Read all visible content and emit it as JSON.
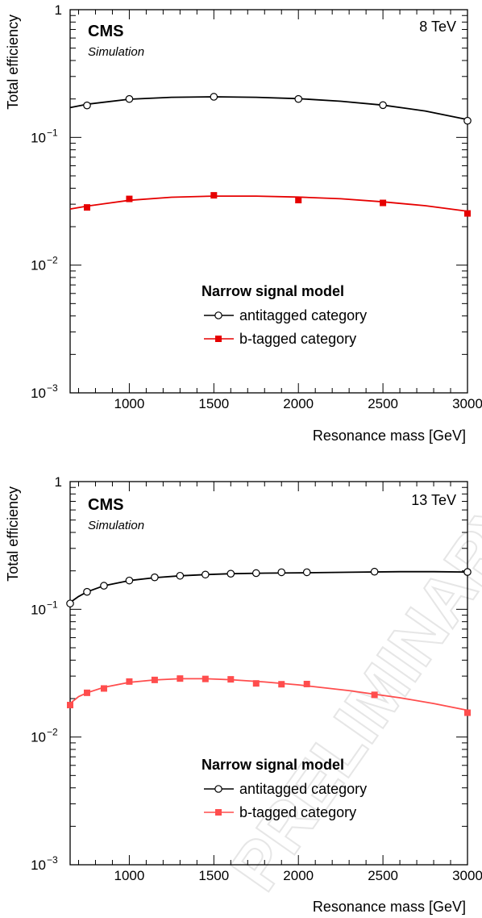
{
  "watermark": "PRELIMINARY",
  "chart_data": [
    {
      "type": "line",
      "energy_label": "8 TeV",
      "experiment": "CMS",
      "subtitle": "Simulation",
      "xlabel": "Resonance mass [GeV]",
      "ylabel": "Total efficiency",
      "xlim": [
        650,
        3000
      ],
      "ylim": [
        0.001,
        1
      ],
      "yscale": "log",
      "x_ticks": [
        "1000",
        "1500",
        "2000",
        "2500",
        "3000"
      ],
      "y_ticks": [
        {
          "base": "10",
          "exp": "−3"
        },
        {
          "base": "10",
          "exp": "−2"
        },
        {
          "base": "10",
          "exp": "−1"
        },
        {
          "base": "1",
          "exp": ""
        }
      ],
      "legend_title": "Narrow signal model",
      "legend_position": "center-right",
      "grid": false,
      "series": [
        {
          "name": "antitagged category",
          "color": "#000000",
          "marker": "open-circle",
          "x": [
            750,
            1000,
            1500,
            2000,
            2500,
            3000
          ],
          "y": [
            0.178,
            0.2,
            0.208,
            0.2,
            0.179,
            0.135
          ],
          "fit_x": [
            650,
            750,
            1000,
            1250,
            1500,
            1750,
            2000,
            2250,
            2500,
            2750,
            3000
          ],
          "fit_y": [
            0.171,
            0.182,
            0.199,
            0.206,
            0.208,
            0.206,
            0.201,
            0.192,
            0.179,
            0.161,
            0.138
          ]
        },
        {
          "name": "b-tagged category",
          "color": "#e60000",
          "marker": "filled-square",
          "x": [
            750,
            1000,
            1500,
            2000,
            2500,
            3000
          ],
          "y": [
            0.0283,
            0.033,
            0.0352,
            0.0323,
            0.0307,
            0.0254
          ],
          "fit_x": [
            650,
            750,
            1000,
            1250,
            1500,
            1750,
            2000,
            2250,
            2500,
            2750,
            3000
          ],
          "fit_y": [
            0.0275,
            0.029,
            0.0322,
            0.034,
            0.0347,
            0.0347,
            0.0341,
            0.0331,
            0.0313,
            0.0292,
            0.0264
          ]
        }
      ]
    },
    {
      "type": "line",
      "energy_label": "13 TeV",
      "experiment": "CMS",
      "subtitle": "Simulation",
      "xlabel": "Resonance mass [GeV]",
      "ylabel": "Total efficiency",
      "xlim": [
        650,
        3000
      ],
      "ylim": [
        0.001,
        1
      ],
      "yscale": "log",
      "x_ticks": [
        "1000",
        "1500",
        "2000",
        "2500",
        "3000"
      ],
      "y_ticks": [
        {
          "base": "10",
          "exp": "−3"
        },
        {
          "base": "10",
          "exp": "−2"
        },
        {
          "base": "10",
          "exp": "−1"
        },
        {
          "base": "1",
          "exp": ""
        }
      ],
      "legend_title": "Narrow signal model",
      "legend_position": "center-right",
      "grid": false,
      "series": [
        {
          "name": "antitagged category",
          "color": "#000000",
          "marker": "open-circle",
          "x": [
            650,
            750,
            850,
            1000,
            1150,
            1300,
            1450,
            1600,
            1750,
            1900,
            2050,
            2450,
            3000
          ],
          "y": [
            0.111,
            0.137,
            0.153,
            0.168,
            0.178,
            0.183,
            0.187,
            0.19,
            0.192,
            0.195,
            0.195,
            0.197,
            0.196
          ],
          "fit_x": [
            650,
            700,
            750,
            850,
            1000,
            1150,
            1300,
            1450,
            1600,
            1800,
            2000,
            2300,
            2600,
            2800,
            3000
          ],
          "fit_y": [
            0.113,
            0.126,
            0.137,
            0.153,
            0.168,
            0.177,
            0.183,
            0.187,
            0.19,
            0.192,
            0.193,
            0.195,
            0.197,
            0.197,
            0.196
          ]
        },
        {
          "name": "b-tagged category",
          "color": "#ff4d4d",
          "marker": "filled-square",
          "x": [
            650,
            750,
            850,
            1000,
            1150,
            1300,
            1450,
            1600,
            1750,
            1900,
            2050,
            2450,
            3000
          ],
          "y": [
            0.0178,
            0.0222,
            0.024,
            0.0272,
            0.028,
            0.0287,
            0.0285,
            0.0283,
            0.0263,
            0.0259,
            0.026,
            0.0214,
            0.0155
          ],
          "fit_x": [
            650,
            700,
            750,
            850,
            1000,
            1150,
            1300,
            1450,
            1600,
            1800,
            2000,
            2300,
            2600,
            2800,
            3000
          ],
          "fit_y": [
            0.0183,
            0.0207,
            0.0222,
            0.0245,
            0.0268,
            0.028,
            0.0286,
            0.0286,
            0.0281,
            0.027,
            0.0256,
            0.0231,
            0.0203,
            0.0183,
            0.0162
          ]
        }
      ]
    }
  ]
}
